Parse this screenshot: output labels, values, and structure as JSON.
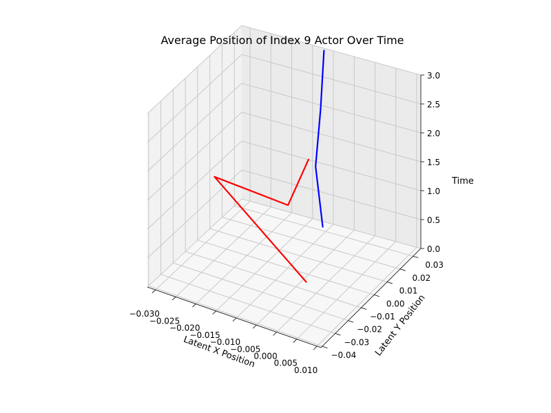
{
  "chart_data": {
    "type": "line",
    "projection": "3d",
    "title": "Average Position of Index 9 Actor Over Time",
    "xlabel": "Latent X Position",
    "ylabel": "Latent Y Position",
    "zlabel": "Time",
    "xlim": [
      -0.032,
      0.011
    ],
    "ylim": [
      -0.041,
      0.036
    ],
    "zlim": [
      0,
      3
    ],
    "grid": true,
    "xticks": [
      "−0.030",
      "−0.025",
      "−0.020",
      "−0.015",
      "−0.010",
      "−0.005",
      "0.000",
      "0.005",
      "0.010"
    ],
    "yticks": [
      "−0.04",
      "−0.03",
      "−0.02",
      "−0.01",
      "0.00",
      "0.01",
      "0.02",
      "0.03"
    ],
    "zticks": [
      "0.0",
      "0.5",
      "1.0",
      "1.5",
      "2.0",
      "2.5",
      "3.0"
    ],
    "series": [
      {
        "color": "#ff0000",
        "x": [
          -0.004,
          -0.03,
          0.0,
          0.006
        ],
        "y": [
          -0.005,
          0.007,
          -0.032,
          -0.035
        ],
        "z": [
          0,
          1,
          2,
          3
        ]
      },
      {
        "color": "#0000ff",
        "x": [
          -0.0115,
          -0.0133,
          -0.0123,
          -0.0118
        ],
        "y": [
          0.0325,
          0.0328,
          0.0335,
          0.0345
        ],
        "z": [
          0,
          1,
          2,
          3
        ]
      }
    ]
  }
}
